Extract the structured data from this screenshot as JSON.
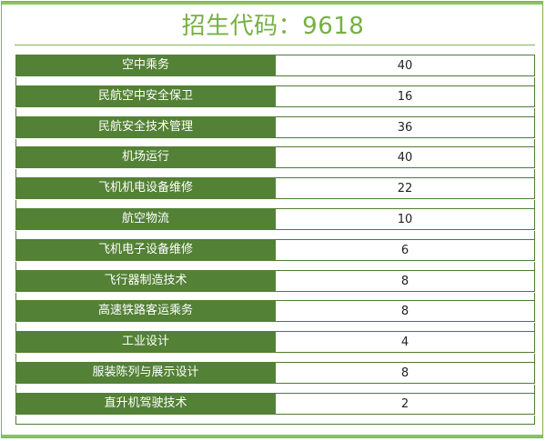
{
  "title": "招生代码：9618",
  "rows": [
    {
      "name": "空中乘务",
      "value": "40"
    },
    {
      "name": "民航空中安全保卫",
      "value": "16"
    },
    {
      "name": "民航安全技术管理",
      "value": "36"
    },
    {
      "name": "机场运行",
      "value": "40"
    },
    {
      "name": "飞机机电设备维修",
      "value": "22"
    },
    {
      "name": "航空物流",
      "value": "10"
    },
    {
      "name": "飞机电子设备维修",
      "value": "6"
    },
    {
      "name": "飞行器制造技术",
      "value": "8"
    },
    {
      "name": "高速铁路客运乘务",
      "value": "8"
    },
    {
      "name": "工业设计",
      "value": "4"
    },
    {
      "name": "服装陈列与展示设计",
      "value": "8"
    },
    {
      "name": "直升机驾驶技术",
      "value": "2"
    }
  ],
  "colors": {
    "accent": "#76b043",
    "label_bg": "#538135",
    "border": "#4d7b35"
  }
}
